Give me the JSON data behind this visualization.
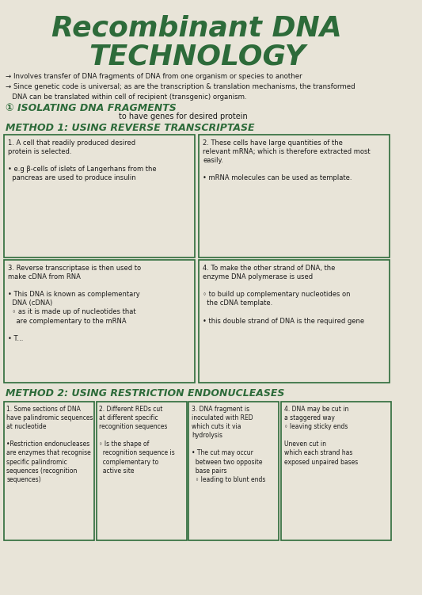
{
  "title_line1": "Recombinant DNA",
  "title_line2": "TECHNOLOGY",
  "bg_color": "#d8d4c8",
  "paper_color": "#e8e4d8",
  "text_color": "#2d6b3a",
  "box_color": "#2d6b3a",
  "intro_bullets": [
    "→ Involves transfer of DNA fragments of DNA from one organism or species to another",
    "→ Since genetic code is universal; as are the transcription & translation mechanisms, the transformed",
    "   DNA can be translated within cell of recipient (transgenic) organism."
  ],
  "section_title": "① ISOLATING DNA FRAGMENTS",
  "section_sub": "to have genes for desired protein",
  "method1_title": "METHOD 1: USING REVERSE TRANSCRIPTASE",
  "method1_boxes": [
    {
      "num": "1.",
      "text": "A cell that readily produced desired\nprotein is selected.\n\n• e.g β-cells of islets of Langerhans from the\n  pancreas are used to produce insulin"
    },
    {
      "num": "2.",
      "text": "These cells have large quantities of the\nrelevant mRNA; which is therefore extracted most\neasily.\n\n• mRNA molecules can be used as template."
    },
    {
      "num": "3.",
      "text": "Reverse transcriptase is then used to\nmake cDNA from RNA\n\n• This DNA is known as complementary\n  DNA (cDNA)\n  ◦ as it is made up of nucleotides that\n    are complementary to the mRNA\n\n• T..."
    },
    {
      "num": "4.",
      "text": "To make the other strand of DNA, the\nenzyme DNA polymerase is used\n\n◦ to build up complementary nucleotides on\n  the cDNA template.\n\n• this double strand of DNA is the required gene"
    }
  ],
  "method2_title": "METHOD 2: USING RESTRICTION ENDONUCLEASES",
  "method2_boxes": [
    {
      "num": "1.",
      "text": "Some sections of DNA\nhave palindromic sequences\nat nucleotide\n\n•Restriction endonucleases\nare enzymes that recognise\nspecific palindromic\nsequences (recognition\nsequences)"
    },
    {
      "num": "2.",
      "text": "Different REDs cut\nat different specific\nrecognition sequences\n\n◦ Is the shape of\n  recognition sequence is\n  complementary to\n  active site"
    },
    {
      "num": "3.",
      "text": "DNA fragment is\ninoculated with RED\nwhich cuts it via\nhydrolysis\n\n• The cut may occur\n  between two opposite\n  base pairs\n  ◦ leading to blunt ends"
    },
    {
      "num": "4.",
      "text": "DNA may be cut in\na staggered way\n◦ leaving sticky ends\n\nUneven cut in\nwhich each strand has\nexposed unpaired bases"
    }
  ]
}
